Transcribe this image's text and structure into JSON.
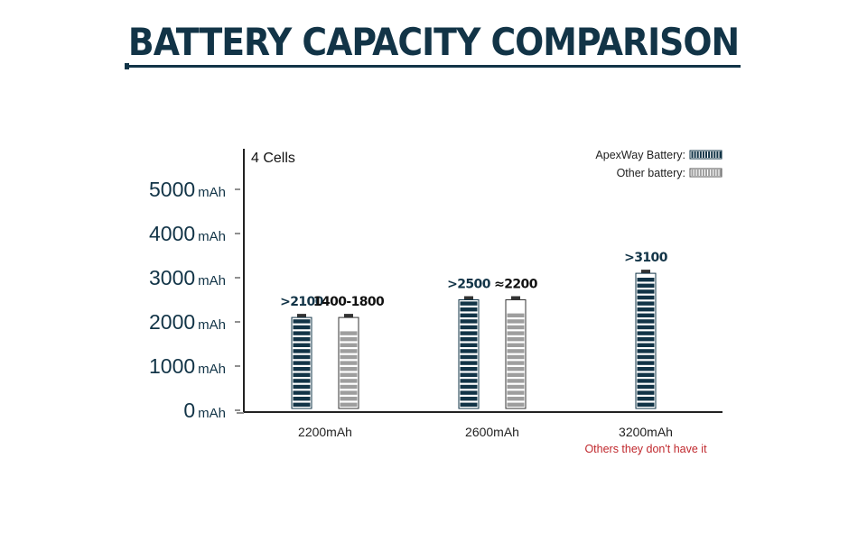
{
  "chart_data": {
    "type": "bar",
    "title": "BATTERY CAPACITY COMPARISON",
    "subtitle": "4 Cells",
    "ylabel": "",
    "xlabel": "",
    "ylim": [
      0,
      5000
    ],
    "y_ticks": [
      {
        "value": 0,
        "num": "0",
        "unit": "mAh"
      },
      {
        "value": 1000,
        "num": "1000",
        "unit": "mAh"
      },
      {
        "value": 2000,
        "num": "2000",
        "unit": "mAh"
      },
      {
        "value": 3000,
        "num": "3000",
        "unit": "mAh"
      },
      {
        "value": 4000,
        "num": "4000",
        "unit": "mAh"
      },
      {
        "value": 5000,
        "num": "5000",
        "unit": "mAh"
      }
    ],
    "categories": [
      "2200mAh",
      "2600mAh",
      "3200mAh"
    ],
    "series": [
      {
        "name": "ApexWay Battery",
        "color": "#123447",
        "values": [
          2100,
          2500,
          3100
        ],
        "labels": [
          ">2100",
          ">2500",
          ">3100"
        ]
      },
      {
        "name": "Other battery",
        "color": "#9e9e9e",
        "values": [
          1800,
          2200,
          null
        ],
        "labels": [
          "1400-1800",
          "≈2200",
          ""
        ]
      }
    ],
    "legend_suffix": ":",
    "legend_position": "top-right",
    "annotations": [
      {
        "category": "3200mAh",
        "text": "Others they don't have it",
        "color": "#c0282d"
      }
    ],
    "grid": false
  }
}
